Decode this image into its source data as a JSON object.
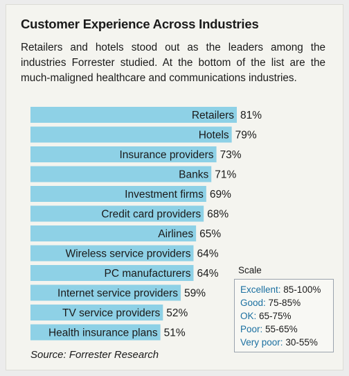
{
  "title": "Customer Experience Across Industries",
  "subtitle": "Retailers and hotels stood out as the leaders among the industries Forrester studied. At the bottom of the list are the much-maligned healthcare and communications industries.",
  "source": "Source: Forrester Research",
  "scale": {
    "title": "Scale",
    "items": [
      {
        "name": "Excellent:",
        "range": "85-100%"
      },
      {
        "name": "Good:",
        "range": "75-85%"
      },
      {
        "name": "OK:",
        "range": "65-75%"
      },
      {
        "name": "Poor:",
        "range": "55-65%"
      },
      {
        "name": "Very poor:",
        "range": "30-55%"
      }
    ]
  },
  "chart_data": {
    "type": "bar",
    "orientation": "horizontal",
    "categories": [
      "Retailers",
      "Hotels",
      "Insurance providers",
      "Banks",
      "Investment firms",
      "Credit card providers",
      "Airlines",
      "Wireless service providers",
      "PC manufacturers",
      "Internet service providers",
      "TV service providers",
      "Health insurance plans"
    ],
    "values": [
      81,
      79,
      73,
      71,
      69,
      68,
      65,
      64,
      64,
      59,
      52,
      51
    ],
    "value_labels": [
      "81%",
      "79%",
      "73%",
      "71%",
      "69%",
      "68%",
      "65%",
      "64%",
      "64%",
      "59%",
      "52%",
      "51%"
    ],
    "bar_color": "#8ed1e6",
    "grid": false
  }
}
